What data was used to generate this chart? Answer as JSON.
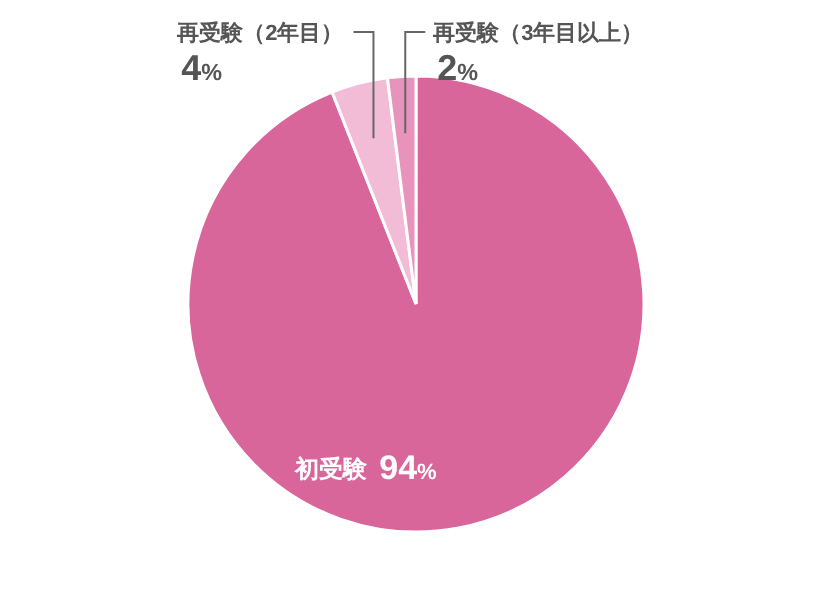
{
  "chart_data": {
    "type": "pie",
    "categories": [
      "初受験",
      "再受験（2年目）",
      "再受験（3年目以上）"
    ],
    "values": [
      94,
      4,
      2
    ],
    "value_labels": [
      "94%",
      "4%",
      "2%"
    ],
    "colors": [
      "#d9669a",
      "#f3bcd6",
      "#e793bb"
    ]
  }
}
